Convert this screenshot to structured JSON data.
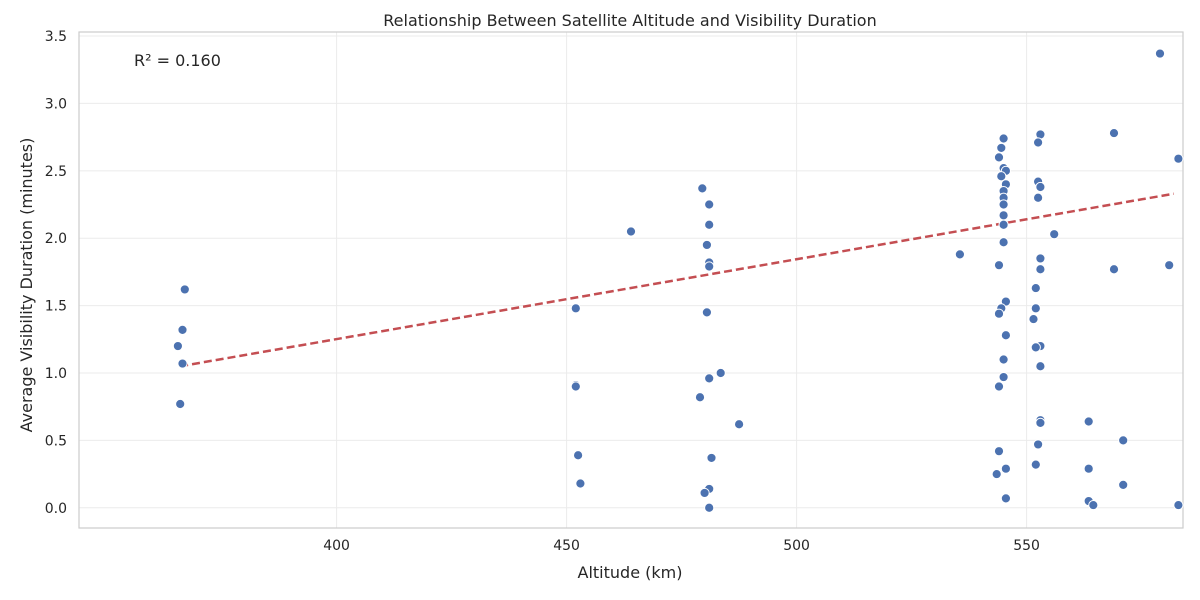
{
  "chart_data": {
    "type": "scatter",
    "title": "Relationship Between Satellite Altitude and Visibility Duration",
    "xlabel": "Altitude (km)",
    "ylabel": "Average Visibility Duration (minutes)",
    "xlim": [
      344,
      584
    ],
    "ylim": [
      -0.15,
      3.53
    ],
    "x_ticks": [
      400,
      450,
      500,
      550
    ],
    "y_ticks": [
      0.0,
      0.5,
      1.0,
      1.5,
      2.0,
      2.5,
      3.0,
      3.5
    ],
    "x_tick_labels": [
      "400",
      "450",
      "500",
      "550"
    ],
    "y_tick_labels": [
      "0.0",
      "0.5",
      "1.0",
      "1.5",
      "2.0",
      "2.5",
      "3.0",
      "3.5"
    ],
    "grid": true,
    "annotation": "R² = 0.160",
    "trend_line": {
      "x": [
        366,
        582
      ],
      "y": [
        1.05,
        2.33
      ]
    },
    "colors": {
      "points": "#4c72b0",
      "trend": "#c44e52"
    },
    "points": [
      {
        "x": 365.5,
        "y": 1.2
      },
      {
        "x": 366.5,
        "y": 1.32
      },
      {
        "x": 367,
        "y": 1.62
      },
      {
        "x": 366.5,
        "y": 1.07
      },
      {
        "x": 366,
        "y": 0.77
      },
      {
        "x": 452,
        "y": 1.48
      },
      {
        "x": 452,
        "y": 0.91
      },
      {
        "x": 452,
        "y": 0.9
      },
      {
        "x": 452.5,
        "y": 0.39
      },
      {
        "x": 453,
        "y": 0.18
      },
      {
        "x": 464,
        "y": 2.05
      },
      {
        "x": 479.5,
        "y": 2.37
      },
      {
        "x": 481,
        "y": 2.25
      },
      {
        "x": 481,
        "y": 2.1
      },
      {
        "x": 480.5,
        "y": 1.95
      },
      {
        "x": 481,
        "y": 1.82
      },
      {
        "x": 481,
        "y": 1.79
      },
      {
        "x": 480.5,
        "y": 1.45
      },
      {
        "x": 481,
        "y": 0.96
      },
      {
        "x": 479,
        "y": 0.82
      },
      {
        "x": 481.5,
        "y": 0.37
      },
      {
        "x": 481,
        "y": 0.14
      },
      {
        "x": 480,
        "y": 0.11
      },
      {
        "x": 481,
        "y": 0.0
      },
      {
        "x": 483.5,
        "y": 1.0
      },
      {
        "x": 487.5,
        "y": 0.62
      },
      {
        "x": 535.5,
        "y": 1.88
      },
      {
        "x": 545,
        "y": 2.74
      },
      {
        "x": 544.5,
        "y": 2.67
      },
      {
        "x": 544,
        "y": 2.6
      },
      {
        "x": 545,
        "y": 2.52
      },
      {
        "x": 545.5,
        "y": 2.5
      },
      {
        "x": 544.5,
        "y": 2.46
      },
      {
        "x": 545.5,
        "y": 2.4
      },
      {
        "x": 545,
        "y": 2.35
      },
      {
        "x": 545,
        "y": 2.3
      },
      {
        "x": 545,
        "y": 2.25
      },
      {
        "x": 545,
        "y": 2.17
      },
      {
        "x": 545,
        "y": 2.1
      },
      {
        "x": 545,
        "y": 1.97
      },
      {
        "x": 544,
        "y": 1.8
      },
      {
        "x": 545.5,
        "y": 1.53
      },
      {
        "x": 544.5,
        "y": 1.48
      },
      {
        "x": 544,
        "y": 1.44
      },
      {
        "x": 545.5,
        "y": 1.28
      },
      {
        "x": 545,
        "y": 1.1
      },
      {
        "x": 545,
        "y": 0.97
      },
      {
        "x": 544,
        "y": 0.9
      },
      {
        "x": 544,
        "y": 0.42
      },
      {
        "x": 545.5,
        "y": 0.29
      },
      {
        "x": 543.5,
        "y": 0.25
      },
      {
        "x": 545.5,
        "y": 0.07
      },
      {
        "x": 553,
        "y": 2.77
      },
      {
        "x": 552.5,
        "y": 2.71
      },
      {
        "x": 552.5,
        "y": 2.42
      },
      {
        "x": 553,
        "y": 2.38
      },
      {
        "x": 552.5,
        "y": 2.3
      },
      {
        "x": 556,
        "y": 2.03
      },
      {
        "x": 553,
        "y": 1.85
      },
      {
        "x": 553,
        "y": 1.77
      },
      {
        "x": 552,
        "y": 1.63
      },
      {
        "x": 552,
        "y": 1.48
      },
      {
        "x": 551.5,
        "y": 1.4
      },
      {
        "x": 553,
        "y": 1.2
      },
      {
        "x": 552,
        "y": 1.19
      },
      {
        "x": 553,
        "y": 1.05
      },
      {
        "x": 553,
        "y": 0.65
      },
      {
        "x": 553,
        "y": 0.63
      },
      {
        "x": 552.5,
        "y": 0.47
      },
      {
        "x": 552,
        "y": 0.32
      },
      {
        "x": 563.5,
        "y": 0.64
      },
      {
        "x": 563.5,
        "y": 0.29
      },
      {
        "x": 563.5,
        "y": 0.05
      },
      {
        "x": 564.5,
        "y": 0.02
      },
      {
        "x": 569,
        "y": 2.78
      },
      {
        "x": 569,
        "y": 1.77
      },
      {
        "x": 571,
        "y": 0.5
      },
      {
        "x": 571,
        "y": 0.17
      },
      {
        "x": 579,
        "y": 3.37
      },
      {
        "x": 583,
        "y": 2.59
      },
      {
        "x": 581,
        "y": 1.8
      },
      {
        "x": 583,
        "y": 0.02
      }
    ]
  }
}
